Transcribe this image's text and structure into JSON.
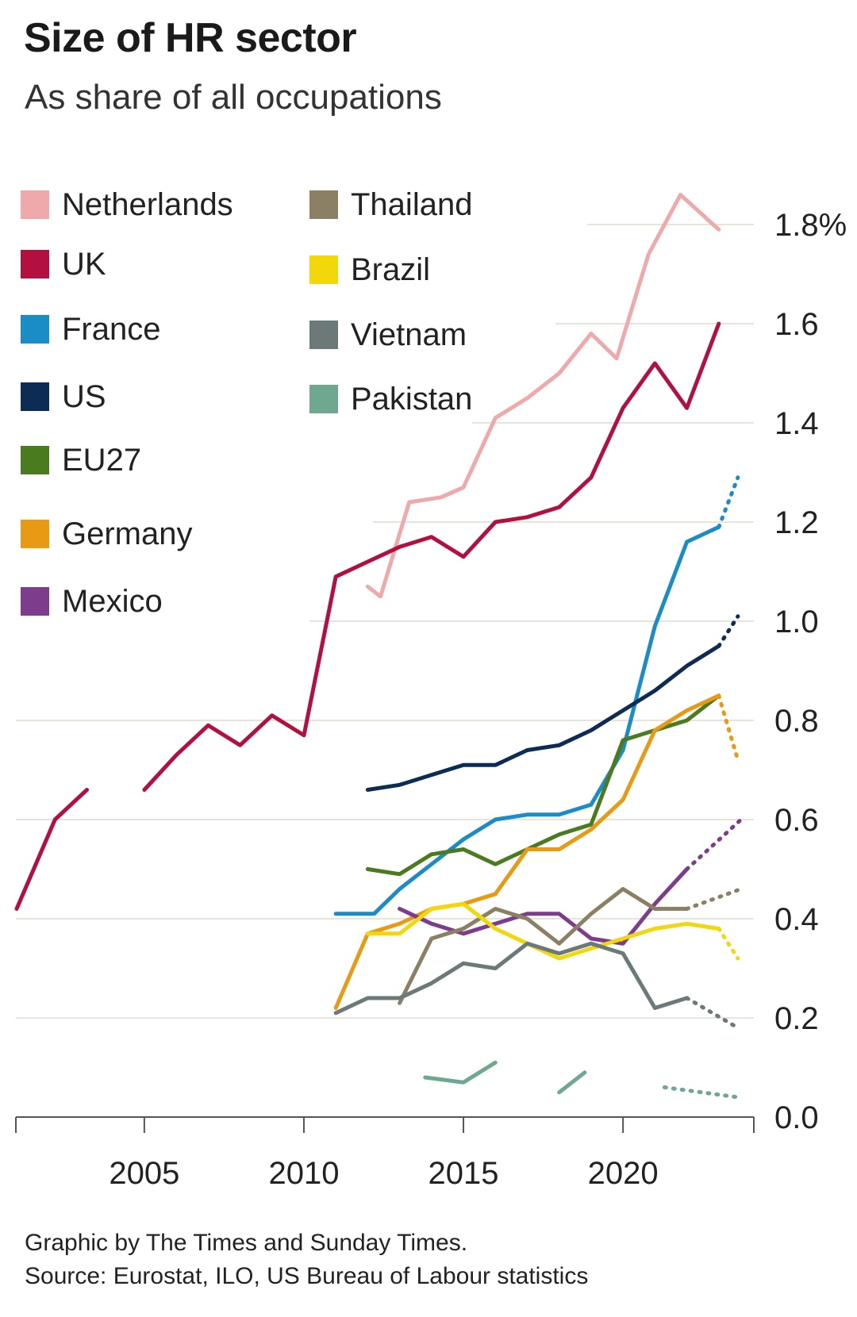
{
  "header": {
    "title": "Size of HR sector",
    "subtitle": "As share of all occupations"
  },
  "footer": {
    "credit": "Graphic by The Times and Sunday Times.",
    "source": "Source: Eurostat, ILO, US Bureau of Labour statistics"
  },
  "chart_data": {
    "type": "line",
    "title": "Size of HR sector",
    "subtitle": "As share of all occupations",
    "x_ticks": [
      2005,
      2010,
      2015,
      2020
    ],
    "xlim": [
      2001,
      2024
    ],
    "ylim": [
      0,
      1.9
    ],
    "y_ticks": [
      {
        "value": 0.0,
        "label": "0.0"
      },
      {
        "value": 0.2,
        "label": "0.2"
      },
      {
        "value": 0.4,
        "label": "0.4"
      },
      {
        "value": 0.6,
        "label": "0.6"
      },
      {
        "value": 0.8,
        "label": "0.8"
      },
      {
        "value": 1.0,
        "label": "1.0"
      },
      {
        "value": 1.2,
        "label": "1.2"
      },
      {
        "value": 1.4,
        "label": "1.4"
      },
      {
        "value": 1.6,
        "label": "1.6"
      },
      {
        "value": 1.8,
        "label": "1.8%"
      }
    ],
    "grid": true,
    "legend_position": "top-left",
    "series": [
      {
        "name": "Netherlands",
        "color": "#f0a9ab",
        "segments": [
          [
            [
              2012,
              1.07
            ],
            [
              2012.4,
              1.05
            ],
            [
              2013.3,
              1.24
            ],
            [
              2014.3,
              1.25
            ],
            [
              2015,
              1.27
            ],
            [
              2016,
              1.41
            ],
            [
              2017,
              1.45
            ],
            [
              2018,
              1.5
            ],
            [
              2019,
              1.58
            ],
            [
              2019.8,
              1.53
            ],
            [
              2020.8,
              1.74
            ],
            [
              2021.8,
              1.86
            ],
            [
              2023,
              1.79
            ]
          ]
        ],
        "projection": []
      },
      {
        "name": "UK",
        "color": "#b3103f",
        "segments": [
          [
            [
              2001,
              0.42
            ],
            [
              2002.2,
              0.6
            ],
            [
              2003.2,
              0.66
            ]
          ],
          [
            [
              2005,
              0.66
            ],
            [
              2006,
              0.73
            ],
            [
              2007,
              0.79
            ],
            [
              2008,
              0.75
            ],
            [
              2009,
              0.81
            ],
            [
              2010,
              0.77
            ],
            [
              2011,
              1.09
            ],
            [
              2012,
              1.12
            ],
            [
              2013,
              1.15
            ],
            [
              2014,
              1.17
            ],
            [
              2015,
              1.13
            ],
            [
              2016,
              1.2
            ],
            [
              2017,
              1.21
            ],
            [
              2018,
              1.23
            ],
            [
              2019,
              1.29
            ],
            [
              2020,
              1.43
            ],
            [
              2021,
              1.52
            ],
            [
              2022,
              1.43
            ],
            [
              2023,
              1.6
            ]
          ]
        ],
        "projection": []
      },
      {
        "name": "France",
        "color": "#1a8cc6",
        "segments": [
          [
            [
              2011,
              0.41
            ],
            [
              2012.2,
              0.41
            ],
            [
              2013,
              0.46
            ],
            [
              2014,
              0.51
            ],
            [
              2015,
              0.56
            ],
            [
              2016,
              0.6
            ],
            [
              2017,
              0.61
            ],
            [
              2018,
              0.61
            ],
            [
              2019,
              0.63
            ],
            [
              2020,
              0.74
            ],
            [
              2021,
              0.99
            ],
            [
              2022,
              1.16
            ],
            [
              2023,
              1.19
            ]
          ]
        ],
        "projection": [
          [
            2023,
            1.19
          ],
          [
            2023.6,
            1.29
          ]
        ]
      },
      {
        "name": "US",
        "color": "#0c2c56",
        "segments": [
          [
            [
              2012,
              0.66
            ],
            [
              2013,
              0.67
            ],
            [
              2014,
              0.69
            ],
            [
              2015,
              0.71
            ],
            [
              2016,
              0.71
            ],
            [
              2017,
              0.74
            ],
            [
              2018,
              0.75
            ],
            [
              2019,
              0.78
            ],
            [
              2020,
              0.82
            ],
            [
              2021,
              0.86
            ],
            [
              2022,
              0.91
            ],
            [
              2023,
              0.95
            ]
          ]
        ],
        "projection": [
          [
            2023,
            0.95
          ],
          [
            2023.6,
            1.01
          ]
        ]
      },
      {
        "name": "EU27",
        "color": "#4a7b1e",
        "segments": [
          [
            [
              2012,
              0.5
            ],
            [
              2013,
              0.49
            ],
            [
              2014,
              0.53
            ],
            [
              2015,
              0.54
            ],
            [
              2016,
              0.51
            ],
            [
              2017,
              0.54
            ],
            [
              2018,
              0.57
            ],
            [
              2019,
              0.59
            ],
            [
              2020,
              0.76
            ],
            [
              2021,
              0.78
            ],
            [
              2022,
              0.8
            ],
            [
              2023,
              0.85
            ]
          ]
        ],
        "projection": []
      },
      {
        "name": "Germany",
        "color": "#e89a12",
        "segments": [
          [
            [
              2011,
              0.22
            ],
            [
              2012,
              0.37
            ],
            [
              2013,
              0.39
            ],
            [
              2014,
              0.42
            ],
            [
              2015,
              0.43
            ],
            [
              2016,
              0.45
            ],
            [
              2017,
              0.54
            ],
            [
              2018,
              0.54
            ],
            [
              2019,
              0.58
            ],
            [
              2020,
              0.64
            ],
            [
              2021,
              0.78
            ],
            [
              2022,
              0.82
            ],
            [
              2023,
              0.85
            ]
          ]
        ],
        "projection": [
          [
            2023,
            0.85
          ],
          [
            2023.6,
            0.72
          ]
        ]
      },
      {
        "name": "Mexico",
        "color": "#7d3c8c",
        "segments": [
          [
            [
              2013,
              0.42
            ],
            [
              2014,
              0.39
            ],
            [
              2015,
              0.37
            ],
            [
              2016,
              0.39
            ],
            [
              2017,
              0.41
            ],
            [
              2018,
              0.41
            ],
            [
              2019,
              0.36
            ],
            [
              2020,
              0.35
            ],
            [
              2021,
              0.43
            ],
            [
              2022,
              0.5
            ]
          ]
        ],
        "projection": [
          [
            2022,
            0.5
          ],
          [
            2023.7,
            0.6
          ]
        ]
      },
      {
        "name": "Thailand",
        "color": "#8c8064",
        "segments": [
          [
            [
              2013,
              0.23
            ],
            [
              2014,
              0.36
            ],
            [
              2015,
              0.38
            ],
            [
              2016,
              0.42
            ],
            [
              2017,
              0.4
            ],
            [
              2018,
              0.35
            ],
            [
              2019,
              0.41
            ],
            [
              2020,
              0.46
            ],
            [
              2021,
              0.42
            ],
            [
              2022,
              0.42
            ]
          ]
        ],
        "projection": [
          [
            2022,
            0.42
          ],
          [
            2023.7,
            0.46
          ]
        ]
      },
      {
        "name": "Brazil",
        "color": "#f2d80a",
        "segments": [
          [
            [
              2012,
              0.37
            ],
            [
              2013,
              0.37
            ],
            [
              2014,
              0.42
            ],
            [
              2015,
              0.43
            ],
            [
              2016,
              0.38
            ],
            [
              2017,
              0.35
            ],
            [
              2018,
              0.32
            ],
            [
              2019,
              0.34
            ],
            [
              2020,
              0.36
            ],
            [
              2021,
              0.38
            ],
            [
              2022,
              0.39
            ],
            [
              2023,
              0.38
            ]
          ]
        ],
        "projection": [
          [
            2023,
            0.38
          ],
          [
            2023.6,
            0.32
          ]
        ]
      },
      {
        "name": "Vietnam",
        "color": "#6b7a78",
        "segments": [
          [
            [
              2011,
              0.21
            ],
            [
              2012,
              0.24
            ],
            [
              2013,
              0.24
            ],
            [
              2014,
              0.27
            ],
            [
              2015,
              0.31
            ],
            [
              2016,
              0.3
            ],
            [
              2017,
              0.35
            ],
            [
              2018,
              0.33
            ],
            [
              2019,
              0.35
            ],
            [
              2020,
              0.33
            ],
            [
              2021,
              0.22
            ],
            [
              2022,
              0.24
            ]
          ]
        ],
        "projection": [
          [
            2022,
            0.24
          ],
          [
            2023.6,
            0.18
          ]
        ]
      },
      {
        "name": "Pakistan",
        "color": "#6ea88e",
        "segments": [
          [
            [
              2013.8,
              0.08
            ],
            [
              2015,
              0.07
            ],
            [
              2016,
              0.11
            ]
          ],
          [
            [
              2018,
              0.05
            ],
            [
              2018.8,
              0.09
            ]
          ]
        ],
        "projection": [
          [
            2021.3,
            0.06
          ],
          [
            2023.6,
            0.04
          ]
        ]
      }
    ]
  }
}
